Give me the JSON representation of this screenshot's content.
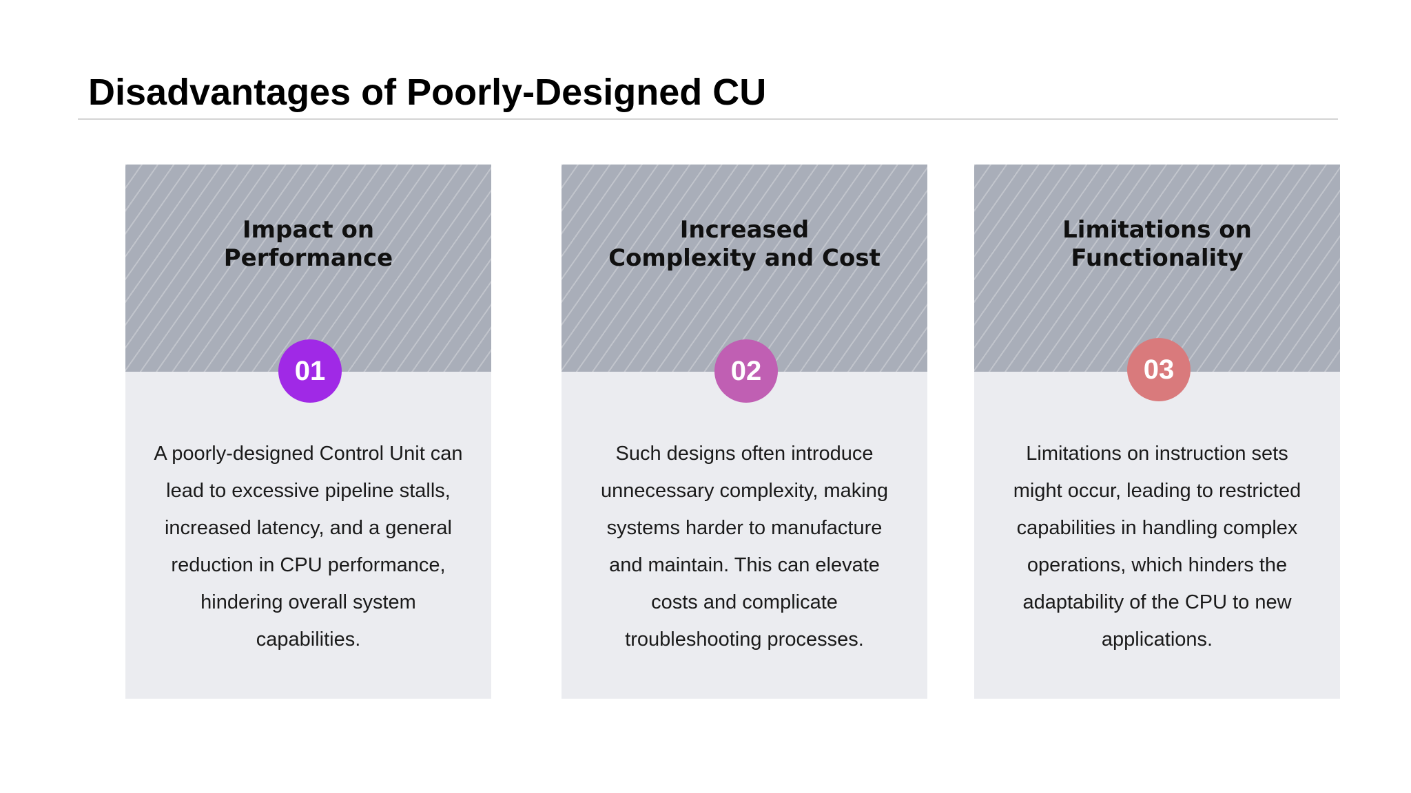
{
  "slide": {
    "title": "Disadvantages of Poorly-Designed CU"
  },
  "cards": [
    {
      "number": "01",
      "heading_line1": "Impact on",
      "heading_line2": "Performance",
      "body": "A poorly-designed Control Unit can lead to excessive pipeline stalls, increased latency, and a general reduction in CPU performance, hindering overall system capabilities.",
      "badge_color": "#a029e6"
    },
    {
      "number": "02",
      "heading_line1": "Increased",
      "heading_line2": "Complexity and Cost",
      "body": "Such designs often introduce unnecessary complexity, making systems harder to manufacture and maintain. This can elevate costs and complicate troubleshooting processes.",
      "badge_color": "#c05fb3"
    },
    {
      "number": "03",
      "heading_line1": "Limitations on",
      "heading_line2": "Functionality",
      "body": "Limitations on instruction sets might occur, leading to restricted capabilities in handling complex operations, which hinders the adaptability of the CPU to new applications.",
      "badge_color": "#d97a7c"
    }
  ],
  "colors": {
    "card_header": "#a9aeb9",
    "card_body": "#ebecf0",
    "rule": "#d4d4d4"
  }
}
